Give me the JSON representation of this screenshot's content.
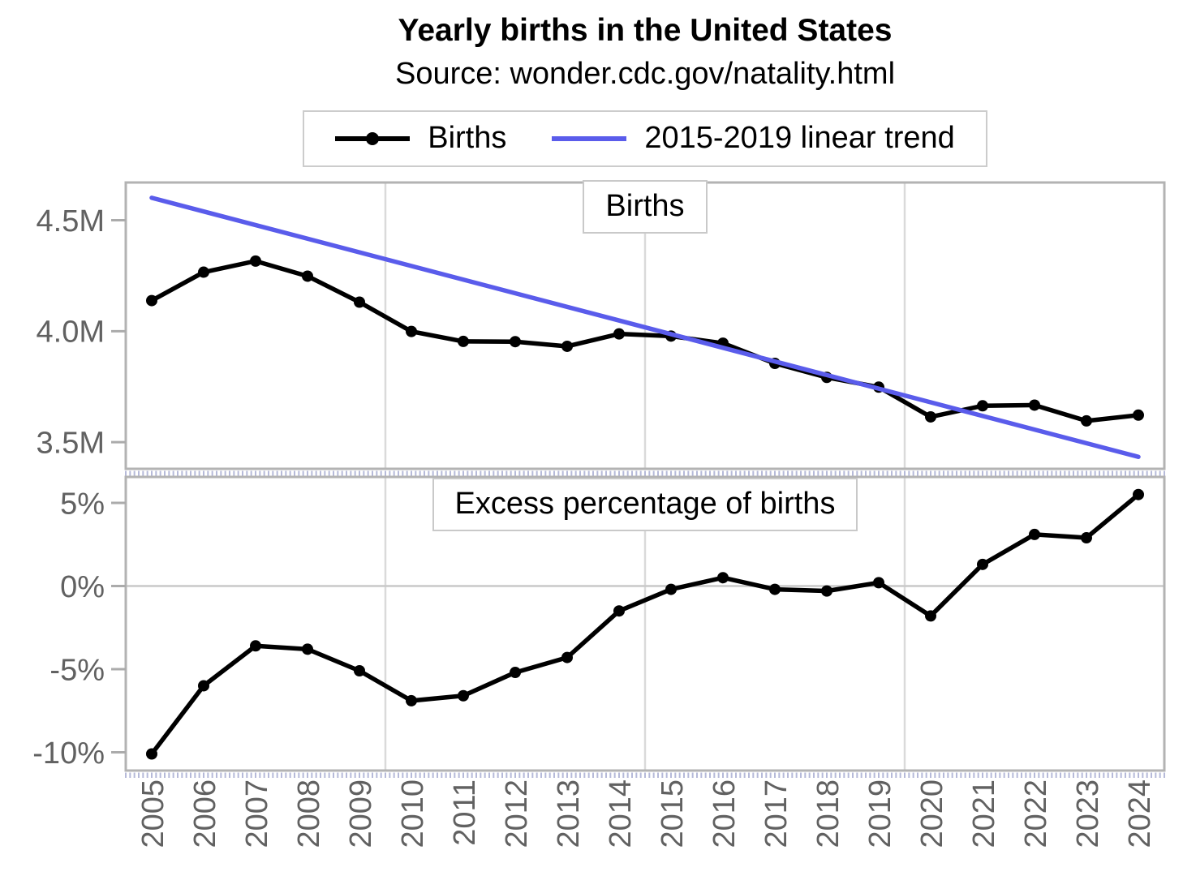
{
  "header": {
    "title": "Yearly births in the United States",
    "subtitle": "Source: wonder.cdc.gov/natality.html"
  },
  "legend": {
    "position": "top",
    "items": [
      {
        "label": "Births",
        "color": "#000000",
        "marker": "line-with-dot"
      },
      {
        "label": "2015-2019 linear trend",
        "color": "#5a5ceb",
        "marker": "line"
      }
    ]
  },
  "colors": {
    "births_line": "#000000",
    "trend_line": "#5a5ceb",
    "axis_text": "#616161",
    "panel_border": "#b3b3b3",
    "tick": "#ababab",
    "gridline": "#dadada",
    "zero_line": "#c9c9c9",
    "minor_tick": "#b6bad9",
    "box_border": "#c9c9c9",
    "legend_border": "#cccccc",
    "background": "#ffffff"
  },
  "x_axis": {
    "tick_labels": [
      "2005",
      "2006",
      "2007",
      "2008",
      "2009",
      "2010",
      "2011",
      "2012",
      "2013",
      "2014",
      "2015",
      "2016",
      "2017",
      "2018",
      "2019",
      "2020",
      "2021",
      "2022",
      "2023",
      "2024"
    ]
  },
  "chart_data": [
    {
      "type": "line",
      "panel_title": "Births",
      "x": [
        2005,
        2006,
        2007,
        2008,
        2009,
        2010,
        2011,
        2012,
        2013,
        2014,
        2015,
        2016,
        2017,
        2018,
        2019,
        2020,
        2021,
        2022,
        2023,
        2024
      ],
      "series": [
        {
          "name": "Births",
          "color": "#000000",
          "marker": true,
          "unit": "millions of births per year",
          "values": [
            4.138,
            4.266,
            4.316,
            4.248,
            4.131,
            3.999,
            3.954,
            3.953,
            3.932,
            3.988,
            3.978,
            3.946,
            3.855,
            3.792,
            3.748,
            3.614,
            3.664,
            3.667,
            3.596,
            3.622
          ]
        },
        {
          "name": "2015-2019 linear trend",
          "color": "#5a5ceb",
          "marker": false,
          "x": [
            2005,
            2024
          ],
          "values": [
            4.601,
            3.434
          ]
        }
      ],
      "yticks": {
        "values": [
          4.5,
          4.0,
          3.5
        ],
        "labels": [
          "4.5M",
          "4.0M",
          "3.5M"
        ]
      },
      "ylim": [
        3.38,
        4.67
      ],
      "xlim": [
        2004.5,
        2024.5
      ],
      "x_gridlines": [
        2009.5,
        2014.5,
        2019.5
      ],
      "zero_line": false,
      "grid": "vertical-only"
    },
    {
      "type": "line",
      "panel_title": "Excess percentage of births",
      "x": [
        2005,
        2006,
        2007,
        2008,
        2009,
        2010,
        2011,
        2012,
        2013,
        2014,
        2015,
        2016,
        2017,
        2018,
        2019,
        2020,
        2021,
        2022,
        2023,
        2024
      ],
      "series": [
        {
          "name": "Excess percentage of births",
          "color": "#000000",
          "marker": true,
          "unit": "percent vs 2015-2019 linear trend",
          "values": [
            -10.1,
            -6.0,
            -3.6,
            -3.8,
            -5.1,
            -6.9,
            -6.6,
            -5.2,
            -4.3,
            -1.5,
            -0.2,
            0.5,
            -0.2,
            -0.3,
            0.2,
            -1.8,
            1.3,
            3.1,
            2.9,
            5.5
          ]
        }
      ],
      "yticks": {
        "values": [
          5,
          0,
          -5,
          -10
        ],
        "labels": [
          "5%",
          "0%",
          "-5%",
          "-10%"
        ]
      },
      "ylim": [
        -11.1,
        6.56
      ],
      "xlim": [
        2004.5,
        2024.5
      ],
      "x_gridlines": [
        2009.5,
        2014.5,
        2019.5
      ],
      "zero_line": true,
      "grid": "vertical-and-zero-line"
    }
  ]
}
